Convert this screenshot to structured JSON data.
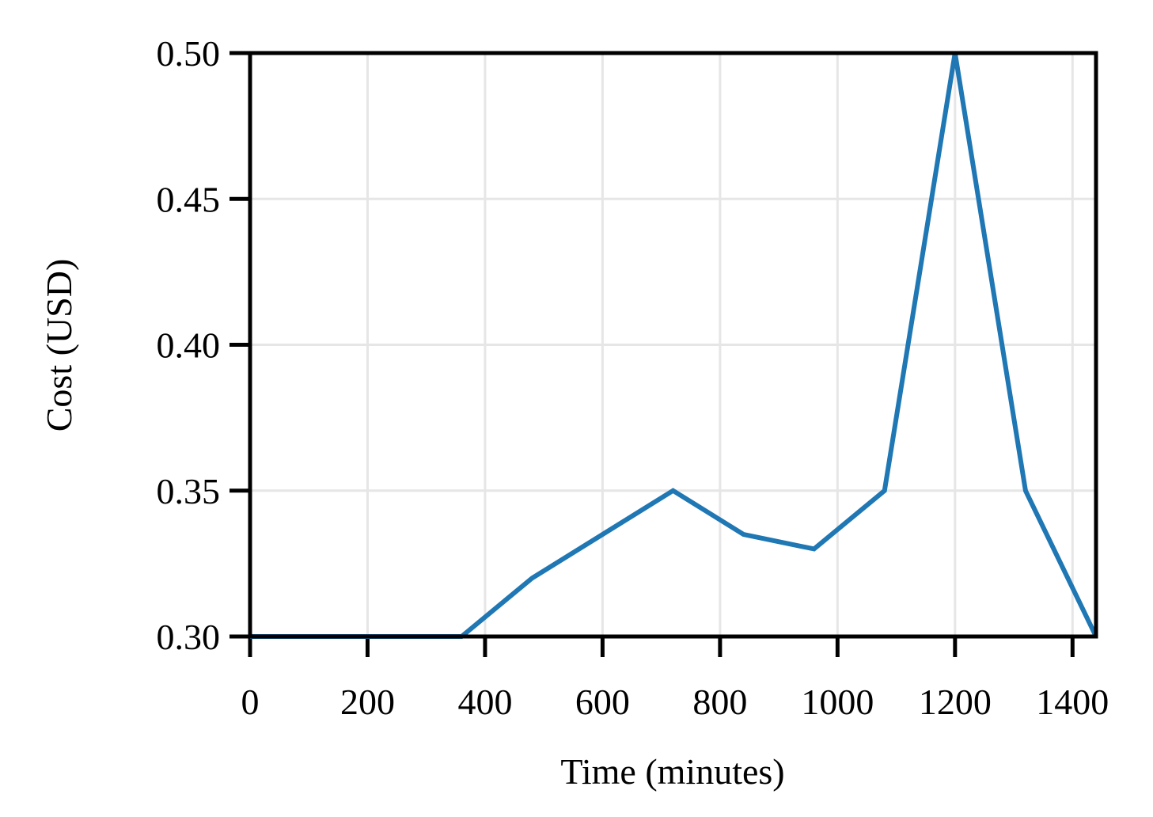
{
  "chart_data": {
    "type": "line",
    "x_label": "Time (minutes)",
    "y_label": "Cost (USD)",
    "x": [
      0,
      120,
      240,
      360,
      480,
      600,
      720,
      840,
      960,
      1080,
      1200,
      1320,
      1440
    ],
    "series": [
      {
        "color": "#1f77b4",
        "values": [
          0.3,
          0.3,
          0.3,
          0.3,
          0.32,
          0.335,
          0.35,
          0.335,
          0.33,
          0.35,
          0.5,
          0.35,
          0.3
        ]
      }
    ],
    "xlim": [
      0,
      1440
    ],
    "xticks": [
      0,
      200,
      400,
      600,
      800,
      1000,
      1200,
      1400
    ],
    "ylim": [
      0.3,
      0.5
    ],
    "yticks": [
      {
        "value": 0.3,
        "label": "0.30"
      },
      {
        "value": 0.35,
        "label": "0.35"
      },
      {
        "value": 0.4,
        "label": "0.40"
      },
      {
        "value": 0.45,
        "label": "0.45"
      },
      {
        "value": 0.5,
        "label": "0.50"
      }
    ],
    "grid": true
  }
}
